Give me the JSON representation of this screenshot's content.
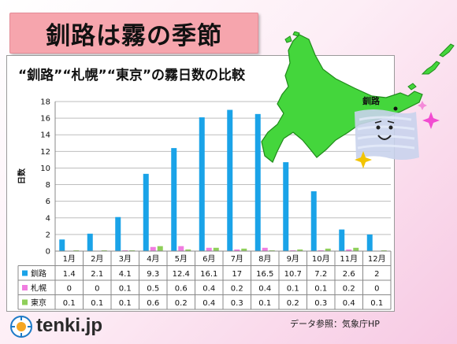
{
  "title": "釧路は霧の季節",
  "chart_title": "“釧路”“札幌”“東京”の霧日数の比較",
  "map_label": "釧路",
  "source": "データ参照：気象庁HP",
  "logo": "tenki.jp",
  "colors": {
    "kushiro": "#1aa3e8",
    "sapporo": "#f07de0",
    "tokyo": "#8fcf5a",
    "map": "#44d63c"
  },
  "chart_data": {
    "type": "bar",
    "title": "“釧路”“札幌”“東京”の霧日数の比較",
    "ylabel": "日数",
    "xlabel": "",
    "ylim": [
      0,
      18
    ],
    "yticks": [
      0,
      2,
      4,
      6,
      8,
      10,
      12,
      14,
      16,
      18
    ],
    "grid": true,
    "legend": "table-below",
    "categories": [
      "1月",
      "2月",
      "3月",
      "4月",
      "5月",
      "6月",
      "7月",
      "8月",
      "9月",
      "10月",
      "11月",
      "12月"
    ],
    "series": [
      {
        "name": "釧路",
        "values": [
          1.4,
          2.1,
          4.1,
          9.3,
          12.4,
          16.1,
          17,
          16.5,
          10.7,
          7.2,
          2.6,
          2
        ]
      },
      {
        "name": "札幌",
        "values": [
          0,
          0,
          0.1,
          0.5,
          0.6,
          0.4,
          0.2,
          0.4,
          0.1,
          0.1,
          0.2,
          0
        ]
      },
      {
        "name": "東京",
        "values": [
          0.1,
          0.1,
          0.1,
          0.6,
          0.2,
          0.4,
          0.3,
          0.1,
          0.2,
          0.3,
          0.4,
          0.1
        ]
      }
    ]
  }
}
